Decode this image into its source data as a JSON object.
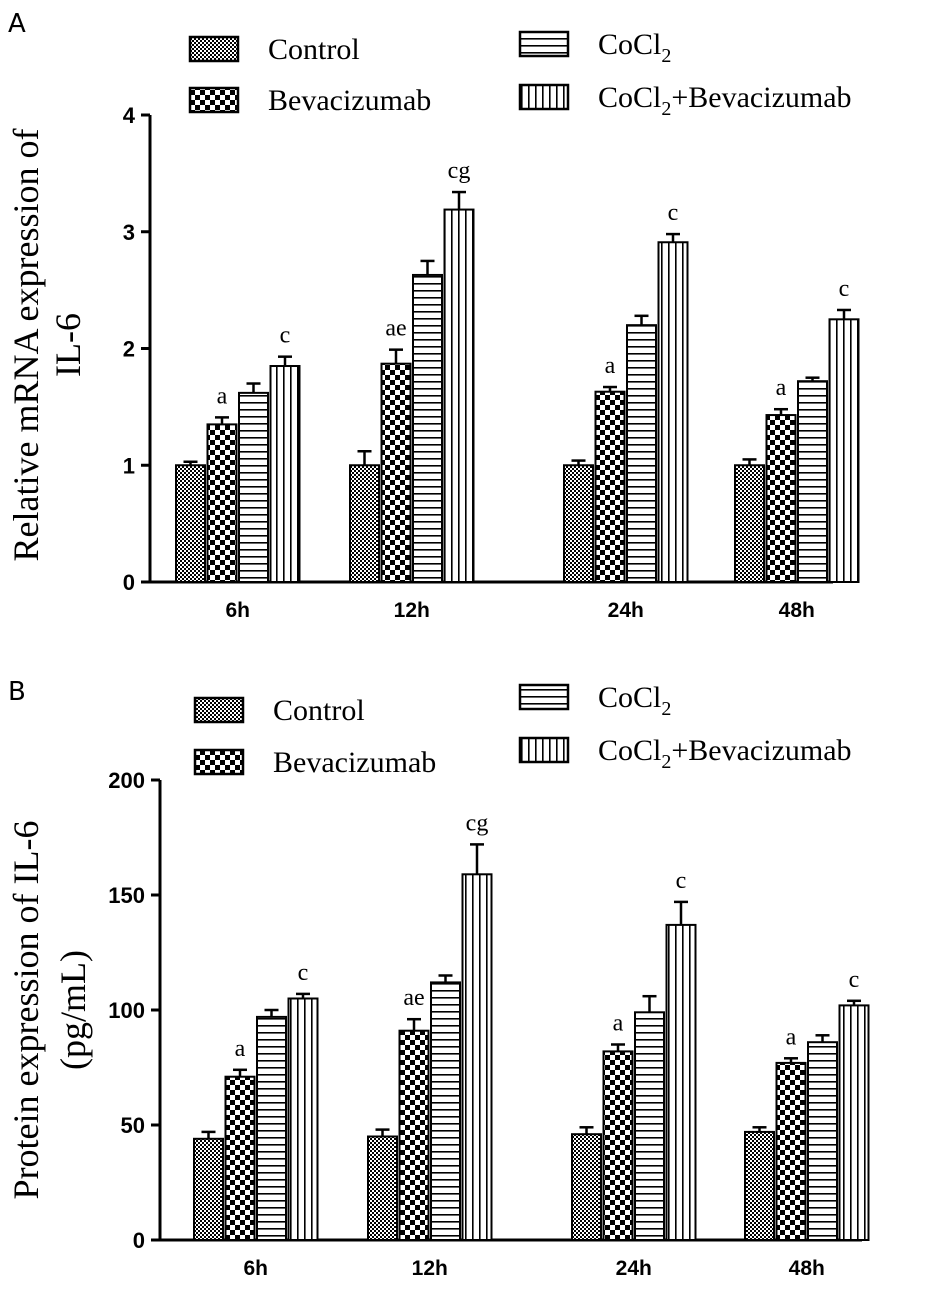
{
  "chart_data": [
    {
      "panel": "A",
      "type": "bar",
      "ylabel_lines": [
        "Relative mRNA expression of",
        "IL-6"
      ],
      "categories": [
        "6h",
        "12h",
        "24h",
        "48h"
      ],
      "ylim": [
        0,
        4
      ],
      "yticks": [
        "0",
        "1",
        "2",
        "3",
        "4"
      ],
      "legend": {
        "entries": [
          {
            "label": "Control",
            "sub": "",
            "suffix": "",
            "pattern": "control"
          },
          {
            "label": "Bevacizumab",
            "sub": "",
            "suffix": "",
            "pattern": "beva"
          },
          {
            "label": "CoCl",
            "sub": "2",
            "suffix": "",
            "pattern": "cocl2"
          },
          {
            "label": "CoCl",
            "sub": "2",
            "suffix": "+Bevacizumab",
            "pattern": "combo"
          }
        ]
      },
      "series": [
        {
          "name": "Control",
          "values": [
            1.0,
            1.0,
            1.0,
            1.0
          ],
          "errors": [
            0.03,
            0.12,
            0.04,
            0.05
          ],
          "sig": [
            "",
            "",
            "",
            ""
          ]
        },
        {
          "name": "Bevacizumab",
          "values": [
            1.35,
            1.87,
            1.63,
            1.43
          ],
          "errors": [
            0.06,
            0.12,
            0.04,
            0.05
          ],
          "sig": [
            "a",
            "ae",
            "a",
            "a"
          ]
        },
        {
          "name": "CoCl2",
          "values": [
            1.62,
            2.63,
            2.2,
            1.72
          ],
          "errors": [
            0.08,
            0.12,
            0.08,
            0.03
          ],
          "sig": [
            "",
            "",
            "",
            ""
          ]
        },
        {
          "name": "CoCl2+Bevacizumab",
          "values": [
            1.85,
            3.19,
            2.91,
            2.25
          ],
          "errors": [
            0.08,
            0.15,
            0.07,
            0.08
          ],
          "sig": [
            "c",
            "cg",
            "c",
            "c"
          ]
        }
      ]
    },
    {
      "panel": "B",
      "type": "bar",
      "ylabel_lines": [
        "Protein expression of IL-6",
        "(pg/mL)"
      ],
      "categories": [
        "6h",
        "12h",
        "24h",
        "48h"
      ],
      "ylim": [
        0,
        200
      ],
      "yticks": [
        "0",
        "50",
        "100",
        "150",
        "200"
      ],
      "legend": {
        "entries": [
          {
            "label": "Control",
            "sub": "",
            "suffix": "",
            "pattern": "control"
          },
          {
            "label": "Bevacizumab",
            "sub": "",
            "suffix": "",
            "pattern": "beva"
          },
          {
            "label": "CoCl",
            "sub": "2",
            "suffix": "",
            "pattern": "cocl2"
          },
          {
            "label": "CoCl",
            "sub": "2",
            "suffix": "+Bevacizumab",
            "pattern": "combo"
          }
        ]
      },
      "series": [
        {
          "name": "Control",
          "values": [
            44,
            45,
            46,
            47
          ],
          "errors": [
            3,
            3,
            3,
            2
          ],
          "sig": [
            "",
            "",
            "",
            ""
          ]
        },
        {
          "name": "Bevacizumab",
          "values": [
            71,
            91,
            82,
            77
          ],
          "errors": [
            3,
            5,
            3,
            2
          ],
          "sig": [
            "a",
            "ae",
            "a",
            "a"
          ]
        },
        {
          "name": "CoCl2",
          "values": [
            97,
            112,
            99,
            86
          ],
          "errors": [
            3,
            3,
            7,
            3
          ],
          "sig": [
            "",
            "",
            "",
            ""
          ]
        },
        {
          "name": "CoCl2+Bevacizumab",
          "values": [
            105,
            159,
            137,
            102
          ],
          "errors": [
            2,
            13,
            10,
            2
          ],
          "sig": [
            "c",
            "cg",
            "c",
            "c"
          ]
        }
      ]
    }
  ]
}
